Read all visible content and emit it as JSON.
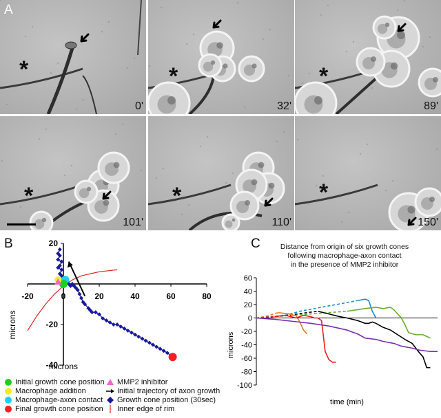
{
  "panelA": {
    "letter": "A",
    "frames": [
      {
        "time": "0'"
      },
      {
        "time": "32'"
      },
      {
        "time": "89'"
      },
      {
        "time": "101'"
      },
      {
        "time": "110'"
      },
      {
        "time": "150'"
      }
    ],
    "asterisk": "*"
  },
  "panelB": {
    "letter": "B",
    "xlabel": "microns",
    "ylabel": "microns",
    "legend": [
      {
        "label": "Initial growth cone position",
        "color": "#22cc22",
        "symbol": "circle"
      },
      {
        "label": "MMP2 inhibitor",
        "color": "#ee66cc",
        "symbol": "triangle"
      },
      {
        "label": "Macrophage addition",
        "color": "#eeee22",
        "symbol": "circle"
      },
      {
        "label": "Initial trajectory of axon growth",
        "color": "#000000",
        "symbol": "arrow"
      },
      {
        "label": "Macrophage-axon contact",
        "color": "#22ccee",
        "symbol": "circle"
      },
      {
        "label": "Growth cone position (30sec)",
        "color": "#1a1a99",
        "symbol": "diamond"
      },
      {
        "label": "Final growth cone position",
        "color": "#ee2222",
        "symbol": "circle"
      },
      {
        "label": "Inner edge of rim",
        "color": "#dd2222",
        "symbol": "line"
      }
    ]
  },
  "panelC": {
    "letter": "C",
    "title_lines": [
      "Distance from origin of six growth cones",
      "following macrophage-axon contact",
      "in the presence of MMP2 inhibitor"
    ],
    "xlabel": "time (min)",
    "ylabel": "microns"
  },
  "chart_data": [
    {
      "type": "scatter",
      "panel": "B",
      "xlabel": "microns",
      "ylabel": "microns",
      "xlim": [
        -20,
        80
      ],
      "ylim": [
        -40,
        20
      ],
      "xticks": [
        -20,
        0,
        20,
        40,
        60,
        80
      ],
      "yticks": [
        -40,
        -20,
        0,
        20
      ],
      "xtick_labels": [
        "-20",
        "0",
        "20",
        "40",
        "60",
        "80"
      ],
      "ytick_labels": [
        "-40",
        "-20",
        "0",
        "20"
      ],
      "series": [
        {
          "name": "Growth cone position (30sec)",
          "color": "#1a1a99",
          "points": [
            [
              -2,
              17
            ],
            [
              -3,
              15
            ],
            [
              -2,
              14
            ],
            [
              -3,
              12
            ],
            [
              -1,
              11
            ],
            [
              -2,
              9
            ],
            [
              -3,
              8
            ],
            [
              -1,
              7
            ],
            [
              -2,
              5
            ],
            [
              -1,
              4
            ],
            [
              0,
              3
            ],
            [
              1,
              2
            ],
            [
              2,
              1
            ],
            [
              3,
              0
            ],
            [
              4,
              -1
            ],
            [
              5,
              0
            ],
            [
              6,
              -1
            ],
            [
              7,
              -2
            ],
            [
              8,
              -3
            ],
            [
              9,
              -5
            ],
            [
              10,
              -7
            ],
            [
              11,
              -9
            ],
            [
              12,
              -10
            ],
            [
              14,
              -12
            ],
            [
              15,
              -13
            ],
            [
              16,
              -14
            ],
            [
              18,
              -14
            ],
            [
              20,
              -15
            ],
            [
              22,
              -17
            ],
            [
              24,
              -18
            ],
            [
              26,
              -19
            ],
            [
              28,
              -20
            ],
            [
              30,
              -20
            ],
            [
              32,
              -21
            ],
            [
              34,
              -22
            ],
            [
              36,
              -23
            ],
            [
              38,
              -24
            ],
            [
              40,
              -25
            ],
            [
              42,
              -26
            ],
            [
              44,
              -27
            ],
            [
              46,
              -28
            ],
            [
              48,
              -29
            ],
            [
              50,
              -30
            ],
            [
              52,
              -31
            ],
            [
              54,
              -32
            ],
            [
              56,
              -33
            ],
            [
              58,
              -34
            ],
            [
              61,
              -36
            ]
          ]
        },
        {
          "name": "Initial growth cone position",
          "color": "#22cc22",
          "points": [
            [
              0,
              0
            ]
          ]
        },
        {
          "name": "Macrophage addition",
          "color": "#eeee22",
          "points": [
            [
              -3,
              2
            ]
          ]
        },
        {
          "name": "MMP2 inhibitor",
          "color": "#ee66cc",
          "points": [
            [
              -3,
              1
            ]
          ]
        },
        {
          "name": "Macrophage-axon contact",
          "color": "#22ccee",
          "points": [
            [
              1,
              2
            ]
          ]
        },
        {
          "name": "Final growth cone position",
          "color": "#ee2222",
          "points": [
            [
              61,
              -36
            ]
          ]
        },
        {
          "name": "Initial trajectory of axon growth",
          "color": "#000000",
          "points": [
            [
              12,
              -6
            ],
            [
              3,
              11
            ]
          ]
        },
        {
          "name": "Inner edge of rim",
          "color": "#dd2222",
          "points": [
            [
              -20,
              -23
            ],
            [
              -15,
              -16
            ],
            [
              -10,
              -10
            ],
            [
              -5,
              -5
            ],
            [
              0,
              -1
            ],
            [
              5,
              2
            ],
            [
              10,
              4
            ],
            [
              15,
              5
            ],
            [
              20,
              6
            ],
            [
              25,
              6.5
            ],
            [
              30,
              7
            ]
          ]
        }
      ]
    },
    {
      "type": "line",
      "panel": "C",
      "xlabel": "time (min)",
      "ylabel": "microns",
      "ylim": [
        -100,
        60
      ],
      "yticks": [
        -100,
        -80,
        -60,
        -40,
        -20,
        0,
        20,
        40,
        60
      ],
      "ytick_labels": [
        "-100",
        "-80",
        "-60",
        "-40",
        "-20",
        "0",
        "20",
        "40",
        "60"
      ],
      "xlim": [
        0,
        100
      ],
      "series": [
        {
          "color": "#1e88d0",
          "dash": "solid",
          "x": [
            0,
            8,
            16,
            24,
            32,
            40,
            48,
            52,
            56,
            60,
            62,
            64,
            66
          ],
          "y": [
            0,
            2,
            4,
            10,
            14,
            18,
            22,
            24,
            26,
            28,
            26,
            10,
            0
          ],
          "dashed_until": 56
        },
        {
          "color": "#6aaa2e",
          "x": [
            0,
            10,
            20,
            30,
            40,
            50,
            60,
            66,
            70,
            74,
            76,
            78,
            80,
            82,
            84,
            88,
            92,
            96
          ],
          "y": [
            0,
            2,
            4,
            6,
            8,
            10,
            14,
            16,
            14,
            16,
            12,
            6,
            0,
            -10,
            -22,
            -25,
            -25,
            -30
          ],
          "dashed_until": 50
        },
        {
          "color": "#000000",
          "x": [
            0,
            10,
            20,
            28,
            34,
            40,
            46,
            50,
            56,
            60,
            62,
            64,
            66,
            70,
            74,
            78,
            82,
            86,
            88,
            90,
            92,
            94,
            96
          ],
          "y": [
            0,
            2,
            5,
            8,
            10,
            6,
            2,
            0,
            -4,
            -8,
            -8,
            -6,
            -8,
            -14,
            -18,
            -25,
            -32,
            -38,
            -45,
            -52,
            -58,
            -74,
            -74
          ],
          "dashed_until": 34
        },
        {
          "color": "#e67a1a",
          "x": [
            0,
            6,
            12,
            18,
            22,
            24,
            26,
            28
          ],
          "y": [
            0,
            3,
            8,
            6,
            3,
            -6,
            -18,
            -24
          ],
          "dashed_until": 12
        },
        {
          "color": "#e62020",
          "x": [
            0,
            10,
            16,
            22,
            26,
            30,
            32,
            34,
            36,
            38,
            40,
            42,
            44
          ],
          "y": [
            0,
            2,
            4,
            0,
            4,
            2,
            0,
            0,
            -4,
            -50,
            -62,
            -66,
            -66
          ],
          "dashed_until": 10
        },
        {
          "color": "#7a2eb0",
          "x": [
            0,
            10,
            20,
            30,
            40,
            50,
            56,
            60,
            66,
            70,
            76,
            80,
            86,
            90,
            96,
            100
          ],
          "y": [
            0,
            -2,
            -5,
            -8,
            -12,
            -18,
            -24,
            -30,
            -32,
            -35,
            -38,
            -42,
            -45,
            -48,
            -50,
            -50
          ],
          "dashed_until": 0
        }
      ]
    }
  ]
}
